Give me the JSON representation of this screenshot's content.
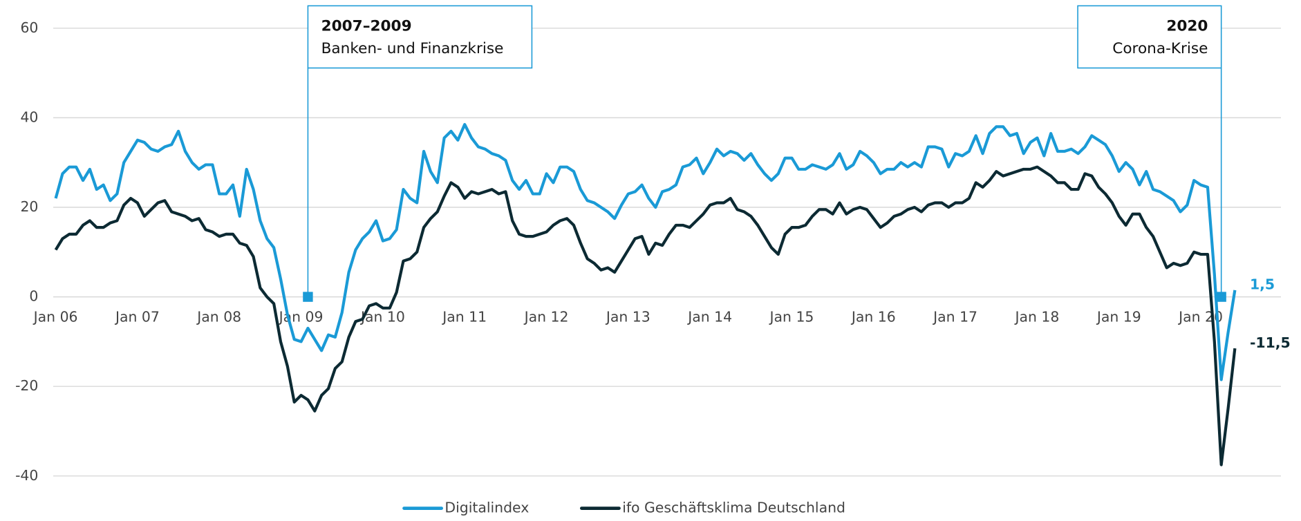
{
  "chart_data": {
    "type": "line",
    "categories": [
      "Jan 06",
      null,
      null,
      null,
      null,
      null,
      null,
      null,
      null,
      null,
      null,
      null,
      "Jan 07",
      null,
      null,
      null,
      null,
      null,
      null,
      null,
      null,
      null,
      null,
      null,
      "Jan 08",
      null,
      null,
      null,
      null,
      null,
      null,
      null,
      null,
      null,
      null,
      null,
      "Jan 09",
      null,
      null,
      null,
      null,
      null,
      null,
      null,
      null,
      null,
      null,
      null,
      "Jan 10",
      null,
      null,
      null,
      null,
      null,
      null,
      null,
      null,
      null,
      null,
      null,
      "Jan 11",
      null,
      null,
      null,
      null,
      null,
      null,
      null,
      null,
      null,
      null,
      null,
      "Jan 12",
      null,
      null,
      null,
      null,
      null,
      null,
      null,
      null,
      null,
      null,
      null,
      "Jan 13",
      null,
      null,
      null,
      null,
      null,
      null,
      null,
      null,
      null,
      null,
      null,
      "Jan 14",
      null,
      null,
      null,
      null,
      null,
      null,
      null,
      null,
      null,
      null,
      null,
      "Jan 15",
      null,
      null,
      null,
      null,
      null,
      null,
      null,
      null,
      null,
      null,
      null,
      "Jan 16",
      null,
      null,
      null,
      null,
      null,
      null,
      null,
      null,
      null,
      null,
      null,
      "Jan 17",
      null,
      null,
      null,
      null,
      null,
      null,
      null,
      null,
      null,
      null,
      null,
      "Jan 18",
      null,
      null,
      null,
      null,
      null,
      null,
      null,
      null,
      null,
      null,
      null,
      "Jan 19",
      null,
      null,
      null,
      null,
      null,
      null,
      null,
      null,
      null,
      null,
      null,
      "Jan 20",
      null,
      null,
      null,
      null,
      null
    ],
    "series": [
      {
        "name": "Digitalindex",
        "color": "#1a9ad6",
        "values": [
          22,
          27.5,
          29,
          29,
          26,
          28.5,
          24,
          25,
          21.5,
          23,
          30,
          32.5,
          35,
          34.5,
          33,
          32.5,
          33.5,
          34,
          37,
          32.5,
          30,
          28.5,
          29.5,
          29.5,
          23,
          23,
          25,
          18,
          28.5,
          24,
          17,
          13,
          11,
          4,
          -4,
          -9.5,
          -10,
          -7,
          -9.5,
          -12,
          -8.5,
          -9,
          -3.5,
          5.5,
          10.5,
          13,
          14.5,
          17,
          12.5,
          13,
          15,
          24,
          22,
          21,
          32.5,
          28,
          25.5,
          35.5,
          37,
          35,
          38.5,
          35.5,
          33.5,
          33,
          32,
          31.5,
          30.5,
          26,
          24,
          26,
          23,
          23,
          27.5,
          25.5,
          29,
          29,
          28,
          24,
          21.5,
          21,
          20,
          19,
          17.5,
          20.5,
          23,
          23.5,
          25,
          22,
          20,
          23.5,
          24,
          25,
          29,
          29.5,
          31,
          27.5,
          30,
          33,
          31.5,
          32.5,
          32,
          30.5,
          32,
          29.5,
          27.5,
          26,
          27.5,
          31,
          31,
          28.5,
          28.5,
          29.5,
          29,
          28.5,
          29.5,
          32,
          28.5,
          29.5,
          32.5,
          31.5,
          30,
          27.5,
          28.5,
          28.5,
          30,
          29,
          30,
          29,
          33.5,
          33.5,
          33,
          29,
          32,
          31.5,
          32.5,
          36,
          32,
          36.5,
          38,
          38,
          36,
          36.5,
          32,
          34.5,
          35.5,
          31.5,
          36.5,
          32.5,
          32.5,
          33,
          32,
          33.5,
          36,
          35,
          34,
          31.5,
          28,
          30,
          28.5,
          25,
          28,
          24,
          23.5,
          22.5,
          21.5,
          19,
          20.5,
          26,
          25,
          24.5,
          5,
          -18.5,
          -8,
          1.5
        ],
        "value_labels": {
          "173": "1,5"
        }
      },
      {
        "name": "ifo Geschäftsklima Deutschland",
        "color": "#0c2a33",
        "values": [
          10.5,
          13,
          14,
          14,
          16,
          17,
          15.5,
          15.5,
          16.5,
          17,
          20.5,
          22,
          21,
          18,
          19.5,
          21,
          21.5,
          19,
          18.5,
          18,
          17,
          17.5,
          15,
          14.5,
          13.5,
          14,
          14,
          12,
          11.5,
          9,
          2,
          0,
          -1.5,
          -10,
          -15.5,
          -23.5,
          -22,
          -23,
          -25.5,
          -22,
          -20.5,
          -16,
          -14.5,
          -9,
          -5.5,
          -5,
          -2,
          -1.5,
          -2.5,
          -2.5,
          1,
          8,
          8.5,
          10,
          15.5,
          17.5,
          19,
          22.5,
          25.5,
          24.5,
          22,
          23.5,
          23,
          23.5,
          24,
          23,
          23.5,
          17,
          14,
          13.5,
          13.5,
          14,
          14.5,
          16,
          17,
          17.5,
          16,
          12,
          8.5,
          7.5,
          6,
          6.5,
          5.5,
          8,
          10.5,
          13,
          13.5,
          9.5,
          12,
          11.5,
          14,
          16,
          16,
          15.5,
          17,
          18.5,
          20.5,
          21,
          21,
          22,
          19.5,
          19,
          18,
          16,
          13.5,
          11,
          9.5,
          14,
          15.5,
          15.5,
          16,
          18,
          19.5,
          19.5,
          18.5,
          21,
          18.5,
          19.5,
          20,
          19.5,
          17.5,
          15.5,
          16.5,
          18,
          18.5,
          19.5,
          20,
          19,
          20.5,
          21,
          21,
          20,
          21,
          21,
          22,
          25.5,
          24.5,
          26,
          28,
          27,
          27.5,
          28,
          28.5,
          28.5,
          29,
          28,
          27,
          25.5,
          25.5,
          24,
          24,
          27.5,
          27,
          24.5,
          23,
          21,
          18,
          16,
          18.5,
          18.5,
          15.5,
          13.5,
          10,
          6.5,
          7.5,
          7,
          7.5,
          10,
          9.5,
          9.5,
          -10,
          -37.5,
          -25,
          -11.5
        ],
        "value_labels": {
          "173": "-11,5"
        }
      }
    ],
    "annotations": [
      {
        "title": "2007–2009",
        "text": "Banken- und Finanzkrise",
        "x": 37,
        "y": 0
      },
      {
        "title": "2020",
        "text": "Corona-Krise",
        "x": 171,
        "y": 0
      }
    ],
    "ylim": [
      -40,
      60
    ],
    "yticks": [
      -40,
      -20,
      0,
      20,
      40,
      60
    ],
    "grid": true,
    "legend": "bottom"
  }
}
